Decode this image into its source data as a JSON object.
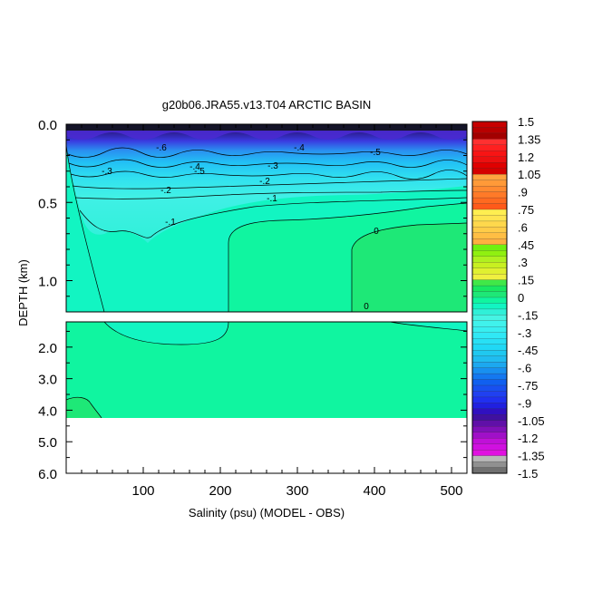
{
  "chart_data": {
    "type": "heatmap",
    "title": "g20b06.JRA55.v13.T04 ARCTIC BASIN",
    "xlabel": "Salinity (psu) (MODEL - OBS)",
    "ylabel": "DEPTH (km)",
    "xlim": [
      0,
      520
    ],
    "x_ticks": [
      "100",
      "200",
      "300",
      "400",
      "500"
    ],
    "upper_panel": {
      "ylim": [
        0.0,
        1.2
      ],
      "y_ticks": [
        "0.0",
        "0.5",
        "1.0"
      ]
    },
    "lower_panel": {
      "ylim": [
        1.2,
        6.0
      ],
      "y_ticks": [
        "2.0",
        "3.0",
        "4.0",
        "5.0",
        "6.0"
      ],
      "data_bottom_depth": 4.1
    },
    "colorbar": {
      "min": -1.5,
      "max": 1.5,
      "interval": 0.05,
      "tick_labels": [
        "1.5",
        "1.35",
        "1.2",
        "1.05",
        ".9",
        ".75",
        ".6",
        ".45",
        ".3",
        ".15",
        "0",
        "-.15",
        "-.3",
        "-.45",
        "-.6",
        "-.75",
        "-.9",
        "-1.05",
        "-1.2",
        "-1.35",
        "-1.5"
      ]
    },
    "contour_labels": [
      "0",
      "-.1",
      "-.2",
      "-.3",
      "-.4",
      "-.5",
      "-.6",
      "-.1",
      "-.2",
      "-.3",
      "-.4",
      "-.5",
      "0"
    ]
  },
  "colors": {
    "band_0_to_0.05": "#1ee877",
    "band_-0.05_to_0": "#10f5a0",
    "band_-0.10_to_-0.05": "#12f5c2",
    "band_-0.15_to_-0.10": "#30f0d8",
    "near_surface_min": "#1a0a5a"
  }
}
